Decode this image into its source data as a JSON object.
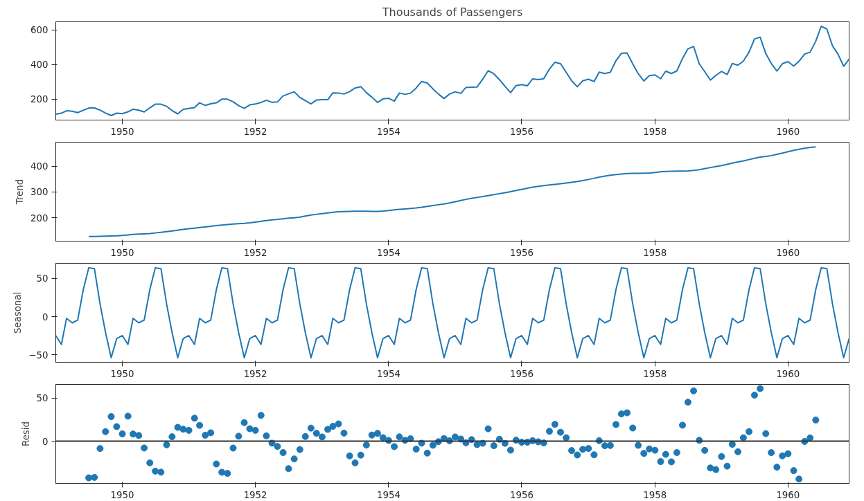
{
  "chart_data": [
    {
      "type": "line",
      "title": "Thousands of Passengers",
      "grid": false,
      "x": [
        "1949-01",
        "1949-02",
        "1949-03",
        "1949-04",
        "1949-05",
        "1949-06",
        "1949-07",
        "1949-08",
        "1949-09",
        "1949-10",
        "1949-11",
        "1949-12",
        "1950-01",
        "1950-02",
        "1950-03",
        "1950-04",
        "1950-05",
        "1950-06",
        "1950-07",
        "1950-08",
        "1950-09",
        "1950-10",
        "1950-11",
        "1950-12",
        "1951-01",
        "1951-02",
        "1951-03",
        "1951-04",
        "1951-05",
        "1951-06",
        "1951-07",
        "1951-08",
        "1951-09",
        "1951-10",
        "1951-11",
        "1951-12",
        "1952-01",
        "1952-02",
        "1952-03",
        "1952-04",
        "1952-05",
        "1952-06",
        "1952-07",
        "1952-08",
        "1952-09",
        "1952-10",
        "1952-11",
        "1952-12",
        "1953-01",
        "1953-02",
        "1953-03",
        "1953-04",
        "1953-05",
        "1953-06",
        "1953-07",
        "1953-08",
        "1953-09",
        "1953-10",
        "1953-11",
        "1953-12",
        "1954-01",
        "1954-02",
        "1954-03",
        "1954-04",
        "1954-05",
        "1954-06",
        "1954-07",
        "1954-08",
        "1954-09",
        "1954-10",
        "1954-11",
        "1954-12",
        "1955-01",
        "1955-02",
        "1955-03",
        "1955-04",
        "1955-05",
        "1955-06",
        "1955-07",
        "1955-08",
        "1955-09",
        "1955-10",
        "1955-11",
        "1955-12",
        "1956-01",
        "1956-02",
        "1956-03",
        "1956-04",
        "1956-05",
        "1956-06",
        "1956-07",
        "1956-08",
        "1956-09",
        "1956-10",
        "1956-11",
        "1956-12",
        "1957-01",
        "1957-02",
        "1957-03",
        "1957-04",
        "1957-05",
        "1957-06",
        "1957-07",
        "1957-08",
        "1957-09",
        "1957-10",
        "1957-11",
        "1957-12",
        "1958-01",
        "1958-02",
        "1958-03",
        "1958-04",
        "1958-05",
        "1958-06",
        "1958-07",
        "1958-08",
        "1958-09",
        "1958-10",
        "1958-11",
        "1958-12",
        "1959-01",
        "1959-02",
        "1959-03",
        "1959-04",
        "1959-05",
        "1959-06",
        "1959-07",
        "1959-08",
        "1959-09",
        "1959-10",
        "1959-11",
        "1959-12",
        "1960-01",
        "1960-02",
        "1960-03",
        "1960-04",
        "1960-05",
        "1960-06",
        "1960-07",
        "1960-08",
        "1960-09",
        "1960-10",
        "1960-11",
        "1960-12"
      ],
      "series": [
        {
          "color": "#1f77b4",
          "values": [
            112,
            118,
            132,
            129,
            121,
            135,
            148,
            148,
            136,
            119,
            104,
            118,
            115,
            126,
            141,
            135,
            125,
            149,
            170,
            170,
            158,
            133,
            114,
            140,
            145,
            150,
            178,
            163,
            172,
            178,
            199,
            199,
            184,
            162,
            146,
            166,
            171,
            180,
            193,
            181,
            183,
            218,
            230,
            242,
            209,
            191,
            172,
            194,
            196,
            196,
            236,
            235,
            229,
            243,
            264,
            272,
            237,
            211,
            180,
            201,
            204,
            188,
            235,
            227,
            234,
            264,
            302,
            293,
            259,
            229,
            203,
            229,
            242,
            233,
            267,
            269,
            270,
            315,
            364,
            347,
            312,
            274,
            237,
            278,
            284,
            277,
            317,
            313,
            318,
            374,
            413,
            405,
            355,
            306,
            271,
            306,
            315,
            301,
            356,
            348,
            355,
            422,
            465,
            467,
            404,
            347,
            305,
            336,
            340,
            318,
            362,
            348,
            363,
            435,
            491,
            505,
            404,
            359,
            310,
            337,
            360,
            342,
            406,
            396,
            420,
            472,
            548,
            559,
            463,
            407,
            362,
            405,
            417,
            391,
            419,
            461,
            472,
            535,
            622,
            606,
            508,
            461,
            390,
            432
          ]
        }
      ],
      "xlim": [
        "1949-01",
        "1960-12"
      ],
      "xticks": [
        {
          "value": "1950",
          "label": "1950"
        },
        {
          "value": "1952",
          "label": "1952"
        },
        {
          "value": "1954",
          "label": "1954"
        },
        {
          "value": "1956",
          "label": "1956"
        },
        {
          "value": "1958",
          "label": "1958"
        },
        {
          "value": "1960",
          "label": "1960"
        }
      ],
      "ylim": [
        78,
        648
      ],
      "yticks": [
        200,
        400,
        600
      ]
    },
    {
      "type": "line",
      "ylabel": "Trend",
      "grid": false,
      "x": [
        "1949-07",
        "1949-08",
        "1949-09",
        "1949-10",
        "1949-11",
        "1949-12",
        "1950-01",
        "1950-02",
        "1950-03",
        "1950-04",
        "1950-05",
        "1950-06",
        "1950-07",
        "1950-08",
        "1950-09",
        "1950-10",
        "1950-11",
        "1950-12",
        "1951-01",
        "1951-02",
        "1951-03",
        "1951-04",
        "1951-05",
        "1951-06",
        "1951-07",
        "1951-08",
        "1951-09",
        "1951-10",
        "1951-11",
        "1951-12",
        "1952-01",
        "1952-02",
        "1952-03",
        "1952-04",
        "1952-05",
        "1952-06",
        "1952-07",
        "1952-08",
        "1952-09",
        "1952-10",
        "1952-11",
        "1952-12",
        "1953-01",
        "1953-02",
        "1953-03",
        "1953-04",
        "1953-05",
        "1953-06",
        "1953-07",
        "1953-08",
        "1953-09",
        "1953-10",
        "1953-11",
        "1953-12",
        "1954-01",
        "1954-02",
        "1954-03",
        "1954-04",
        "1954-05",
        "1954-06",
        "1954-07",
        "1954-08",
        "1954-09",
        "1954-10",
        "1954-11",
        "1954-12",
        "1955-01",
        "1955-02",
        "1955-03",
        "1955-04",
        "1955-05",
        "1955-06",
        "1955-07",
        "1955-08",
        "1955-09",
        "1955-10",
        "1955-11",
        "1955-12",
        "1956-01",
        "1956-02",
        "1956-03",
        "1956-04",
        "1956-05",
        "1956-06",
        "1956-07",
        "1956-08",
        "1956-09",
        "1956-10",
        "1956-11",
        "1956-12",
        "1957-01",
        "1957-02",
        "1957-03",
        "1957-04",
        "1957-05",
        "1957-06",
        "1957-07",
        "1957-08",
        "1957-09",
        "1957-10",
        "1957-11",
        "1957-12",
        "1958-01",
        "1958-02",
        "1958-03",
        "1958-04",
        "1958-05",
        "1958-06",
        "1958-07",
        "1958-08",
        "1958-09",
        "1958-10",
        "1958-11",
        "1958-12",
        "1959-01",
        "1959-02",
        "1959-03",
        "1959-04",
        "1959-05",
        "1959-06",
        "1959-07",
        "1959-08",
        "1959-09",
        "1959-10",
        "1959-11",
        "1959-12",
        "1960-01",
        "1960-02",
        "1960-03",
        "1960-04",
        "1960-05",
        "1960-06"
      ],
      "series": [
        {
          "color": "#1f77b4",
          "values": [
            126.8,
            127.3,
            128.0,
            128.6,
            129.0,
            129.8,
            131.3,
            133.1,
            134.9,
            136.4,
            137.4,
            138.8,
            140.9,
            143.2,
            145.7,
            148.4,
            151.5,
            154.7,
            157.1,
            159.5,
            161.8,
            164.1,
            166.7,
            169.1,
            171.3,
            173.6,
            175.5,
            176.8,
            178.0,
            180.2,
            183.1,
            186.2,
            189.0,
            191.3,
            193.6,
            195.8,
            198.0,
            199.8,
            202.2,
            206.3,
            210.4,
            213.4,
            215.8,
            218.5,
            220.9,
            222.9,
            224.1,
            224.7,
            225.3,
            225.3,
            225.0,
            224.6,
            224.5,
            225.5,
            228.0,
            230.5,
            232.3,
            233.9,
            235.6,
            237.8,
            240.5,
            244.0,
            247.2,
            250.3,
            253.5,
            257.1,
            261.8,
            266.7,
            271.1,
            275.2,
            278.5,
            282.0,
            285.8,
            289.3,
            293.3,
            297.2,
            301.0,
            305.5,
            310.0,
            314.4,
            318.6,
            321.8,
            324.5,
            327.1,
            329.5,
            331.8,
            334.5,
            337.5,
            340.5,
            344.1,
            348.3,
            353.0,
            357.6,
            361.4,
            364.5,
            367.2,
            369.5,
            371.2,
            372.2,
            372.4,
            372.8,
            373.6,
            375.3,
            377.9,
            379.5,
            380.0,
            380.7,
            381.0,
            381.8,
            383.7,
            386.5,
            390.3,
            394.7,
            398.6,
            402.5,
            407.2,
            411.9,
            416.3,
            420.5,
            425.5,
            430.7,
            435.1,
            437.7,
            441.0,
            445.8,
            450.6,
            456.3,
            461.4,
            465.2,
            469.3,
            472.8,
            475.0
          ]
        }
      ],
      "xlim": [
        "1949-01",
        "1960-12"
      ],
      "xticks": [
        {
          "value": "1950",
          "label": "1950"
        },
        {
          "value": "1952",
          "label": "1952"
        },
        {
          "value": "1954",
          "label": "1954"
        },
        {
          "value": "1956",
          "label": "1956"
        },
        {
          "value": "1958",
          "label": "1958"
        },
        {
          "value": "1960",
          "label": "1960"
        }
      ],
      "ylim": [
        109,
        493
      ],
      "yticks": [
        200,
        300,
        400
      ]
    },
    {
      "type": "line",
      "ylabel": "Seasonal",
      "grid": false,
      "x": [
        "1949-01",
        "1949-02",
        "1949-03",
        "1949-04",
        "1949-05",
        "1949-06",
        "1949-07",
        "1949-08",
        "1949-09",
        "1949-10",
        "1949-11",
        "1949-12",
        "1950-01",
        "1950-02",
        "1950-03",
        "1950-04",
        "1950-05",
        "1950-06",
        "1950-07",
        "1950-08",
        "1950-09",
        "1950-10",
        "1950-11",
        "1950-12",
        "1951-01",
        "1951-02",
        "1951-03",
        "1951-04",
        "1951-05",
        "1951-06",
        "1951-07",
        "1951-08",
        "1951-09",
        "1951-10",
        "1951-11",
        "1951-12",
        "1952-01",
        "1952-02",
        "1952-03",
        "1952-04",
        "1952-05",
        "1952-06",
        "1952-07",
        "1952-08",
        "1952-09",
        "1952-10",
        "1952-11",
        "1952-12",
        "1953-01",
        "1953-02",
        "1953-03",
        "1953-04",
        "1953-05",
        "1953-06",
        "1953-07",
        "1953-08",
        "1953-09",
        "1953-10",
        "1953-11",
        "1953-12",
        "1954-01",
        "1954-02",
        "1954-03",
        "1954-04",
        "1954-05",
        "1954-06",
        "1954-07",
        "1954-08",
        "1954-09",
        "1954-10",
        "1954-11",
        "1954-12",
        "1955-01",
        "1955-02",
        "1955-03",
        "1955-04",
        "1955-05",
        "1955-06",
        "1955-07",
        "1955-08",
        "1955-09",
        "1955-10",
        "1955-11",
        "1955-12",
        "1956-01",
        "1956-02",
        "1956-03",
        "1956-04",
        "1956-05",
        "1956-06",
        "1956-07",
        "1956-08",
        "1956-09",
        "1956-10",
        "1956-11",
        "1956-12",
        "1957-01",
        "1957-02",
        "1957-03",
        "1957-04",
        "1957-05",
        "1957-06",
        "1957-07",
        "1957-08",
        "1957-09",
        "1957-10",
        "1957-11",
        "1957-12",
        "1958-01",
        "1958-02",
        "1958-03",
        "1958-04",
        "1958-05",
        "1958-06",
        "1958-07",
        "1958-08",
        "1958-09",
        "1958-10",
        "1958-11",
        "1958-12",
        "1959-01",
        "1959-02",
        "1959-03",
        "1959-04",
        "1959-05",
        "1959-06",
        "1959-07",
        "1959-08",
        "1959-09",
        "1959-10",
        "1959-11",
        "1959-12",
        "1960-01",
        "1960-02",
        "1960-03",
        "1960-04",
        "1960-05",
        "1960-06",
        "1960-07",
        "1960-08",
        "1960-09",
        "1960-10",
        "1960-11",
        "1960-12"
      ],
      "series": [
        {
          "color": "#1f77b4",
          "values": [
            -24.7,
            -36.2,
            -2.2,
            -8.0,
            -4.5,
            35.4,
            63.8,
            62.8,
            16.5,
            -20.6,
            -53.6,
            -28.6,
            -24.7,
            -36.2,
            -2.2,
            -8.0,
            -4.5,
            35.4,
            63.8,
            62.8,
            16.5,
            -20.6,
            -53.6,
            -28.6,
            -24.7,
            -36.2,
            -2.2,
            -8.0,
            -4.5,
            35.4,
            63.8,
            62.8,
            16.5,
            -20.6,
            -53.6,
            -28.6,
            -24.7,
            -36.2,
            -2.2,
            -8.0,
            -4.5,
            35.4,
            63.8,
            62.8,
            16.5,
            -20.6,
            -53.6,
            -28.6,
            -24.7,
            -36.2,
            -2.2,
            -8.0,
            -4.5,
            35.4,
            63.8,
            62.8,
            16.5,
            -20.6,
            -53.6,
            -28.6,
            -24.7,
            -36.2,
            -2.2,
            -8.0,
            -4.5,
            35.4,
            63.8,
            62.8,
            16.5,
            -20.6,
            -53.6,
            -28.6,
            -24.7,
            -36.2,
            -2.2,
            -8.0,
            -4.5,
            35.4,
            63.8,
            62.8,
            16.5,
            -20.6,
            -53.6,
            -28.6,
            -24.7,
            -36.2,
            -2.2,
            -8.0,
            -4.5,
            35.4,
            63.8,
            62.8,
            16.5,
            -20.6,
            -53.6,
            -28.6,
            -24.7,
            -36.2,
            -2.2,
            -8.0,
            -4.5,
            35.4,
            63.8,
            62.8,
            16.5,
            -20.6,
            -53.6,
            -28.6,
            -24.7,
            -36.2,
            -2.2,
            -8.0,
            -4.5,
            35.4,
            63.8,
            62.8,
            16.5,
            -20.6,
            -53.6,
            -28.6,
            -24.7,
            -36.2,
            -2.2,
            -8.0,
            -4.5,
            35.4,
            63.8,
            62.8,
            16.5,
            -20.6,
            -53.6,
            -28.6,
            -24.7,
            -36.2,
            -2.2,
            -8.0,
            -4.5,
            35.4,
            63.8,
            62.8,
            16.5,
            -20.6,
            -53.6,
            -28.6
          ]
        }
      ],
      "xlim": [
        "1949-01",
        "1960-12"
      ],
      "xticks": [
        {
          "value": "1950",
          "label": "1950"
        },
        {
          "value": "1952",
          "label": "1952"
        },
        {
          "value": "1954",
          "label": "1954"
        },
        {
          "value": "1956",
          "label": "1956"
        },
        {
          "value": "1958",
          "label": "1958"
        },
        {
          "value": "1960",
          "label": "1960"
        }
      ],
      "ylim": [
        -59.5,
        69.7
      ],
      "yticks": [
        -50,
        0,
        50
      ]
    },
    {
      "type": "scatter",
      "ylabel": "Resid",
      "grid": false,
      "marker": "circle",
      "x": [
        "1949-07",
        "1949-08",
        "1949-09",
        "1949-10",
        "1949-11",
        "1949-12",
        "1950-01",
        "1950-02",
        "1950-03",
        "1950-04",
        "1950-05",
        "1950-06",
        "1950-07",
        "1950-08",
        "1950-09",
        "1950-10",
        "1950-11",
        "1950-12",
        "1951-01",
        "1951-02",
        "1951-03",
        "1951-04",
        "1951-05",
        "1951-06",
        "1951-07",
        "1951-08",
        "1951-09",
        "1951-10",
        "1951-11",
        "1951-12",
        "1952-01",
        "1952-02",
        "1952-03",
        "1952-04",
        "1952-05",
        "1952-06",
        "1952-07",
        "1952-08",
        "1952-09",
        "1952-10",
        "1952-11",
        "1952-12",
        "1953-01",
        "1953-02",
        "1953-03",
        "1953-04",
        "1953-05",
        "1953-06",
        "1953-07",
        "1953-08",
        "1953-09",
        "1953-10",
        "1953-11",
        "1953-12",
        "1954-01",
        "1954-02",
        "1954-03",
        "1954-04",
        "1954-05",
        "1954-06",
        "1954-07",
        "1954-08",
        "1954-09",
        "1954-10",
        "1954-11",
        "1954-12",
        "1955-01",
        "1955-02",
        "1955-03",
        "1955-04",
        "1955-05",
        "1955-06",
        "1955-07",
        "1955-08",
        "1955-09",
        "1955-10",
        "1955-11",
        "1955-12",
        "1956-01",
        "1956-02",
        "1956-03",
        "1956-04",
        "1956-05",
        "1956-06",
        "1956-07",
        "1956-08",
        "1956-09",
        "1956-10",
        "1956-11",
        "1956-12",
        "1957-01",
        "1957-02",
        "1957-03",
        "1957-04",
        "1957-05",
        "1957-06",
        "1957-07",
        "1957-08",
        "1957-09",
        "1957-10",
        "1957-11",
        "1957-12",
        "1958-01",
        "1958-02",
        "1958-03",
        "1958-04",
        "1958-05",
        "1958-06",
        "1958-07",
        "1958-08",
        "1958-09",
        "1958-10",
        "1958-11",
        "1958-12",
        "1959-01",
        "1959-02",
        "1959-03",
        "1959-04",
        "1959-05",
        "1959-06",
        "1959-07",
        "1959-08",
        "1959-09",
        "1959-10",
        "1959-11",
        "1959-12",
        "1960-01",
        "1960-02",
        "1960-03",
        "1960-04",
        "1960-05",
        "1960-06"
      ],
      "series": [
        {
          "color": "#1f77b4",
          "values": [
            -42.6,
            -42.1,
            -8.5,
            11.1,
            28.6,
            16.9,
            8.5,
            29.1,
            8.3,
            6.6,
            -7.9,
            -25.2,
            -34.8,
            -36.0,
            -4.2,
            5.2,
            16.1,
            13.9,
            12.6,
            26.7,
            18.4,
            6.9,
            9.8,
            -26.5,
            -36.1,
            -37.4,
            -8.0,
            5.8,
            21.6,
            14.5,
            12.6,
            30.0,
            6.2,
            -2.3,
            -6.1,
            -13.2,
            -31.9,
            -20.6,
            -9.7,
            5.4,
            15.2,
            9.2,
            4.9,
            13.7,
            17.3,
            20.1,
            9.4,
            -17.1,
            -25.2,
            -16.2,
            -4.5,
            7.1,
            9.1,
            4.1,
            0.8,
            -6.3,
            5.0,
            1.1,
            2.9,
            -9.2,
            -2.3,
            -13.8,
            -4.7,
            -0.6,
            3.1,
            0.5,
            4.9,
            2.5,
            -1.9,
            1.8,
            -4.0,
            -2.4,
            14.4,
            -5.2,
            2.2,
            -2.5,
            -10.4,
            1.2,
            -1.2,
            -1.2,
            0.6,
            -0.7,
            -2.0,
            11.5,
            19.6,
            10.4,
            4.0,
            -10.9,
            -16.0,
            -9.5,
            -8.5,
            -15.8,
            0.6,
            -5.3,
            -5.0,
            19.4,
            31.7,
            33.0,
            15.3,
            -4.8,
            -14.2,
            -9.0,
            -10.5,
            -23.7,
            -15.3,
            -24.0,
            -13.2,
            18.6,
            45.3,
            58.5,
            1.0,
            -10.7,
            -31.1,
            -33.0,
            -17.8,
            -29.0,
            -3.6,
            -12.3,
            4.0,
            11.1,
            53.5,
            61.1,
            8.8,
            -13.3,
            -30.2,
            -17.0,
            -14.6,
            -34.2,
            -44.0,
            -0.3,
            3.8,
            24.6
          ]
        }
      ],
      "xlim": [
        "1949-01",
        "1960-12"
      ],
      "xticks": [
        {
          "value": "1950",
          "label": "1950"
        },
        {
          "value": "1952",
          "label": "1952"
        },
        {
          "value": "1954",
          "label": "1954"
        },
        {
          "value": "1956",
          "label": "1956"
        },
        {
          "value": "1958",
          "label": "1958"
        },
        {
          "value": "1960",
          "label": "1960"
        }
      ],
      "ylim": [
        -49,
        66
      ],
      "yticks": [
        0,
        50
      ],
      "ref_lines": [
        {
          "axis": "y",
          "value": 0,
          "color": "#333333",
          "line_style": "solid"
        }
      ]
    }
  ]
}
